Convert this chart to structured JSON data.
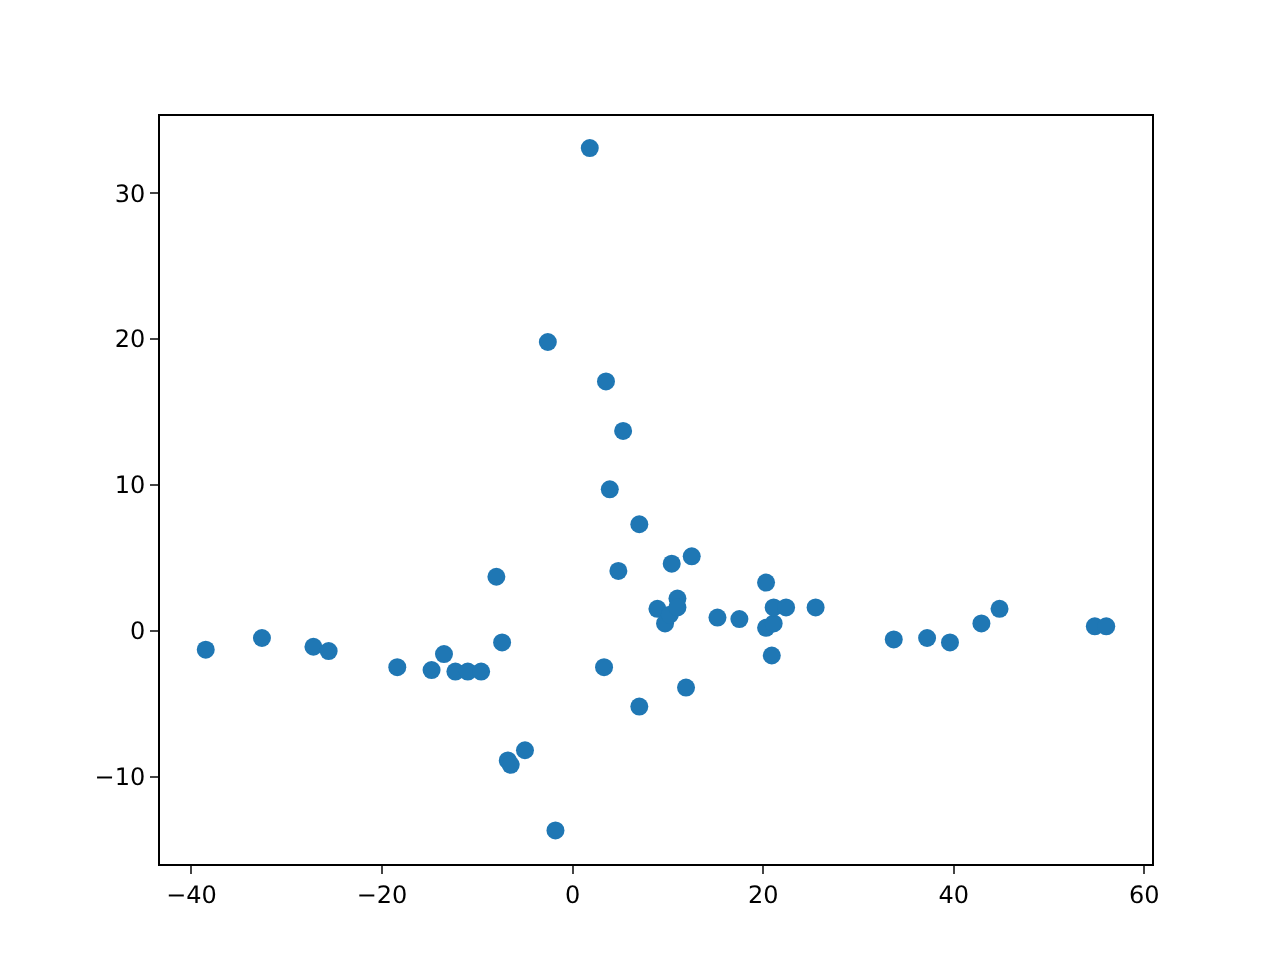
{
  "chart_data": {
    "type": "scatter",
    "marker": "circle",
    "xlim": [
      -43.3,
      60.8
    ],
    "ylim": [
      -16.0,
      35.3
    ],
    "xticks": [
      {
        "value": -40,
        "label": "−40"
      },
      {
        "value": -20,
        "label": "−20"
      },
      0,
      20,
      40,
      60
    ],
    "yticks": [
      {
        "value": -10,
        "label": "−10"
      },
      0,
      10,
      20,
      30
    ],
    "series": [
      {
        "color": "#1f77b4",
        "x": [
          -38.5,
          -32.6,
          -27.2,
          -25.6,
          -18.4,
          -14.8,
          -13.5,
          -12.3,
          -11.0,
          -9.6,
          -8.0,
          -7.4,
          -6.8,
          -6.5,
          -5.0,
          -1.8,
          -2.6,
          1.8,
          3.5,
          5.3,
          3.9,
          7.0,
          4.8,
          3.3,
          7.0,
          11.9,
          10.4,
          12.5,
          8.9,
          9.7,
          10.2,
          11.0,
          11.0,
          15.2,
          17.5,
          20.3,
          20.3,
          21.1,
          21.1,
          22.4,
          20.9,
          25.5,
          33.7,
          37.2,
          39.6,
          42.9,
          44.8,
          54.8,
          56.0
        ],
        "values": [
          -1.3,
          -0.5,
          -1.1,
          -1.4,
          -2.5,
          -2.7,
          -1.6,
          -2.8,
          -2.8,
          -2.8,
          3.7,
          -0.8,
          -8.9,
          -9.2,
          -8.2,
          -13.7,
          19.8,
          33.1,
          17.1,
          13.7,
          9.7,
          7.3,
          4.1,
          -2.5,
          -5.2,
          -3.9,
          4.6,
          5.1,
          1.5,
          0.5,
          1.1,
          2.2,
          1.6,
          0.9,
          0.8,
          3.3,
          0.2,
          0.5,
          1.6,
          1.6,
          -1.7,
          1.6,
          -0.6,
          -0.5,
          -0.8,
          0.5,
          1.5,
          0.3,
          0.3
        ]
      }
    ]
  }
}
